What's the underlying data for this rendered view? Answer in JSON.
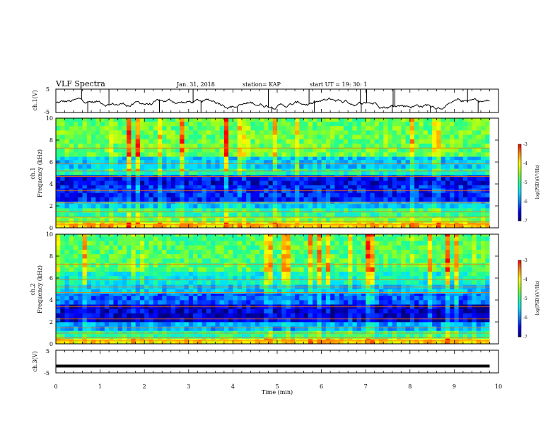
{
  "header": {
    "title": "VLF Spectra",
    "date": "Jan. 31, 2018",
    "station": "station= KAP",
    "start": "start  UT =   19: 30: 1"
  },
  "colors": {
    "colormap": [
      "#00007a",
      "#0000ff",
      "#0080ff",
      "#00e0ff",
      "#20ff90",
      "#90ff20",
      "#ffff00",
      "#ff9000",
      "#ff0000",
      "#ffffff"
    ],
    "waveform": "#000000"
  },
  "chart_data": [
    {
      "type": "line",
      "name": "ch1-waveform",
      "ylabel": "ch.1(V)",
      "ylim": [
        -5,
        5
      ],
      "yticks": [
        "5",
        "-5"
      ],
      "xlim": [
        0,
        10
      ]
    },
    {
      "type": "heatmap",
      "name": "ch1-spectrogram",
      "ylabel": "ch.1\nFrequency (kHz)",
      "ylabel_line1": "ch.1",
      "ylabel_line2": "Frequency (kHz)",
      "ylim": [
        0,
        10
      ],
      "yticks": [
        "0",
        "2",
        "4",
        "6",
        "8",
        "10"
      ],
      "xlim": [
        0,
        10
      ],
      "data_end_min": 9.8,
      "colorbar": {
        "label": "log(PSD)(V²/Hz)",
        "range": [
          -7,
          -3
        ],
        "ticks": [
          "-3",
          "-4",
          "-5",
          "-6",
          "-7"
        ]
      },
      "bands": [
        {
          "freq_khz": [
            0.0,
            0.5
          ],
          "level": -3.8
        },
        {
          "freq_khz": [
            0.5,
            1.0
          ],
          "level": -4.6
        },
        {
          "freq_khz": [
            1.0,
            1.8
          ],
          "level": -5.0
        },
        {
          "freq_khz": [
            1.8,
            2.4
          ],
          "level": -5.6
        },
        {
          "freq_khz": [
            2.4,
            3.9
          ],
          "level": -6.4
        },
        {
          "freq_khz": [
            3.9,
            4.8
          ],
          "level": -6.6
        },
        {
          "freq_khz": [
            4.8,
            5.4
          ],
          "level": -5.2
        },
        {
          "freq_khz": [
            5.4,
            6.5
          ],
          "level": -5.6
        },
        {
          "freq_khz": [
            6.5,
            10.0
          ],
          "level": -4.7
        }
      ]
    },
    {
      "type": "heatmap",
      "name": "ch2-spectrogram",
      "ylabel": "ch.2\nFrequency (kHz)",
      "ylabel_line1": "ch.2",
      "ylabel_line2": "Frequency (kHz)",
      "ylim": [
        0,
        10
      ],
      "yticks": [
        "0",
        "2",
        "4",
        "6",
        "8",
        "10"
      ],
      "xlim": [
        0,
        10
      ],
      "data_end_min": 9.8,
      "colorbar": {
        "label": "log(PSD)(V²/Hz)",
        "range": [
          -7,
          -3
        ],
        "ticks": [
          "-3",
          "-4",
          "-5",
          "-6",
          "-7"
        ]
      },
      "bands": [
        {
          "freq_khz": [
            0.0,
            0.5
          ],
          "level": -3.9
        },
        {
          "freq_khz": [
            0.5,
            1.2
          ],
          "level": -5.0
        },
        {
          "freq_khz": [
            1.2,
            2.0
          ],
          "level": -5.8
        },
        {
          "freq_khz": [
            2.0,
            3.6
          ],
          "level": -6.7
        },
        {
          "freq_khz": [
            3.6,
            4.6
          ],
          "level": -6.1
        },
        {
          "freq_khz": [
            4.6,
            5.4
          ],
          "level": -5.6
        },
        {
          "freq_khz": [
            5.4,
            6.6
          ],
          "level": -5.3
        },
        {
          "freq_khz": [
            6.6,
            10.0
          ],
          "level": -4.8
        }
      ]
    },
    {
      "type": "line",
      "name": "ch3-waveform",
      "ylabel": "ch.3(V)",
      "ylim": [
        -5,
        5
      ],
      "yticks": [
        "5",
        "-5"
      ],
      "xlim": [
        0,
        10
      ],
      "constant_value": -2
    }
  ],
  "xaxis": {
    "label": "Time (min)",
    "ticks": [
      "0",
      "1",
      "2",
      "3",
      "4",
      "5",
      "6",
      "7",
      "8",
      "9",
      "10"
    ],
    "range": [
      0,
      10
    ]
  }
}
